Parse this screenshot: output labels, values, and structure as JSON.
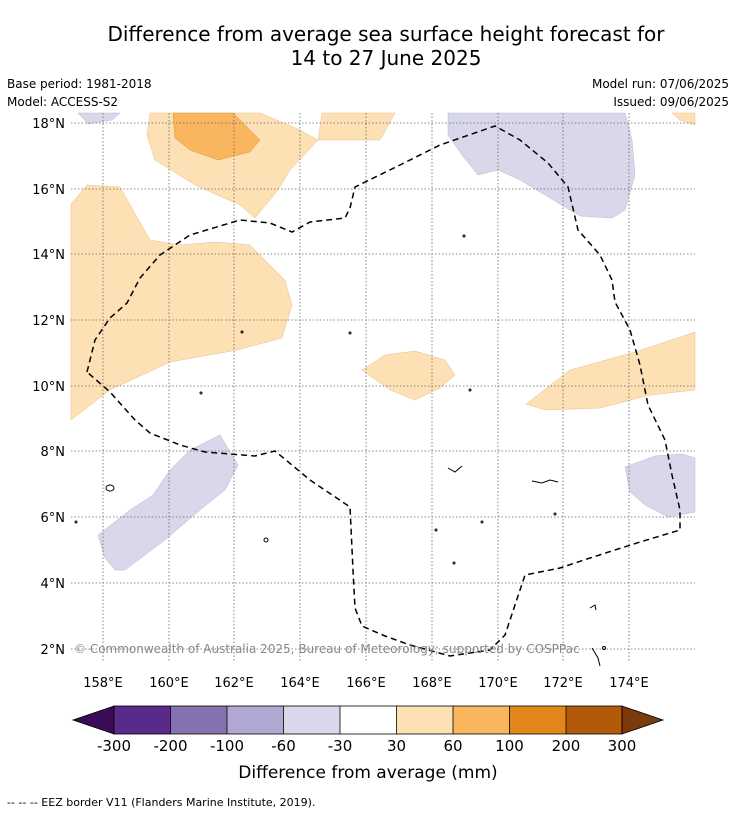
{
  "title_line1": "Difference from average sea surface height forecast for",
  "title_line2": "14 to 27 June 2025",
  "meta": {
    "base_period": "Base period: 1981-2018",
    "model": "Model: ACCESS-S2",
    "model_run": "Model run: 07/06/2025",
    "issued": "Issued: 09/06/2025"
  },
  "map": {
    "lat_labels": [
      "18°N",
      "16°N",
      "14°N",
      "12°N",
      "10°N",
      "8°N",
      "6°N",
      "4°N",
      "2°N"
    ],
    "lon_labels": [
      "158°E",
      "160°E",
      "162°E",
      "164°E",
      "166°E",
      "168°E",
      "170°E",
      "172°E",
      "174°E"
    ],
    "copyright": "© Commonwealth of Australia 2025, Bureau of Meteorology; supported by COSPPac"
  },
  "colorbar": {
    "ticks": [
      "-300",
      "-200",
      "-100",
      "-60",
      "-30",
      "30",
      "60",
      "100",
      "200",
      "300"
    ],
    "colors": [
      "#5a2a8a",
      "#8472b0",
      "#b0a8d2",
      "#d8d8ea",
      "#ffffff",
      "#fde0b4",
      "#f9b65e",
      "#e4851c",
      "#b35a0a"
    ],
    "under_color": "#3b0a58",
    "over_color": "#7a3a0a",
    "label": "Difference from average (mm)"
  },
  "footer": "--  --  -- EEZ border V11 (Flanders Marine Institute, 2019)."
}
